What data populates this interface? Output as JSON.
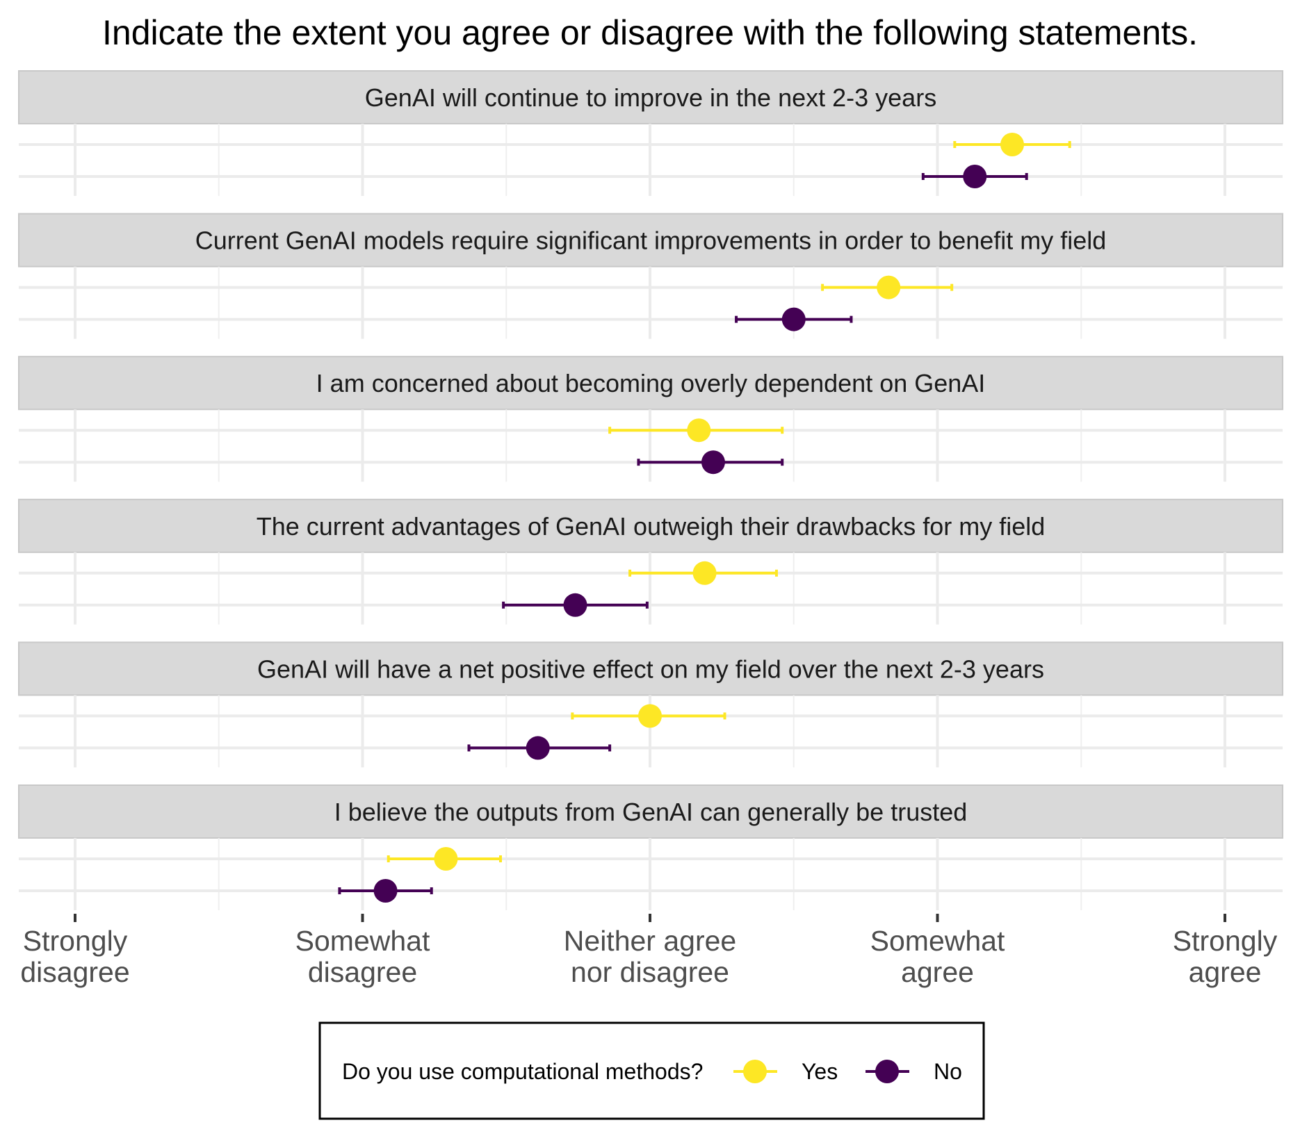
{
  "chart_data": {
    "type": "scatter",
    "title": "Indicate the extent you agree or disagree with the following statements.",
    "x_scale": {
      "min": 1,
      "max": 5,
      "ticks": [
        {
          "value": 1,
          "label": [
            "Strongly",
            "disagree"
          ]
        },
        {
          "value": 2,
          "label": [
            "Somewhat",
            "disagree"
          ]
        },
        {
          "value": 3,
          "label": [
            "Neither agree",
            "nor disagree"
          ]
        },
        {
          "value": 4,
          "label": [
            "Somewhat",
            "agree"
          ]
        },
        {
          "value": 5,
          "label": [
            "Strongly",
            "agree"
          ]
        }
      ]
    },
    "grid": true,
    "legend": {
      "title": "Do you use computational methods?",
      "position": "bottom",
      "entries": [
        {
          "name": "Yes",
          "color": "#FDE725"
        },
        {
          "name": "No",
          "color": "#440154"
        }
      ]
    },
    "panels": [
      {
        "label": "GenAI will continue to improve in the next 2-3 years",
        "series": [
          {
            "name": "Yes",
            "mean": 4.26,
            "low": 4.06,
            "high": 4.46
          },
          {
            "name": "No",
            "mean": 4.13,
            "low": 3.95,
            "high": 4.31
          }
        ]
      },
      {
        "label": "Current GenAI models require significant improvements in order to benefit my field",
        "series": [
          {
            "name": "Yes",
            "mean": 3.83,
            "low": 3.6,
            "high": 4.05
          },
          {
            "name": "No",
            "mean": 3.5,
            "low": 3.3,
            "high": 3.7
          }
        ]
      },
      {
        "label": "I am concerned about becoming overly dependent on GenAI",
        "series": [
          {
            "name": "Yes",
            "mean": 3.17,
            "low": 2.86,
            "high": 3.46
          },
          {
            "name": "No",
            "mean": 3.22,
            "low": 2.96,
            "high": 3.46
          }
        ]
      },
      {
        "label": "The current advantages of GenAI outweigh their drawbacks for my field",
        "series": [
          {
            "name": "Yes",
            "mean": 3.19,
            "low": 2.93,
            "high": 3.44
          },
          {
            "name": "No",
            "mean": 2.74,
            "low": 2.49,
            "high": 2.99
          }
        ]
      },
      {
        "label": "GenAI will have a net positive effect on my field over the next 2-3 years",
        "series": [
          {
            "name": "Yes",
            "mean": 3.0,
            "low": 2.73,
            "high": 3.26
          },
          {
            "name": "No",
            "mean": 2.61,
            "low": 2.37,
            "high": 2.86
          }
        ]
      },
      {
        "label": "I believe the outputs from GenAI can generally be trusted",
        "series": [
          {
            "name": "Yes",
            "mean": 2.29,
            "low": 2.09,
            "high": 2.48
          },
          {
            "name": "No",
            "mean": 2.08,
            "low": 1.92,
            "high": 2.24
          }
        ]
      }
    ]
  }
}
